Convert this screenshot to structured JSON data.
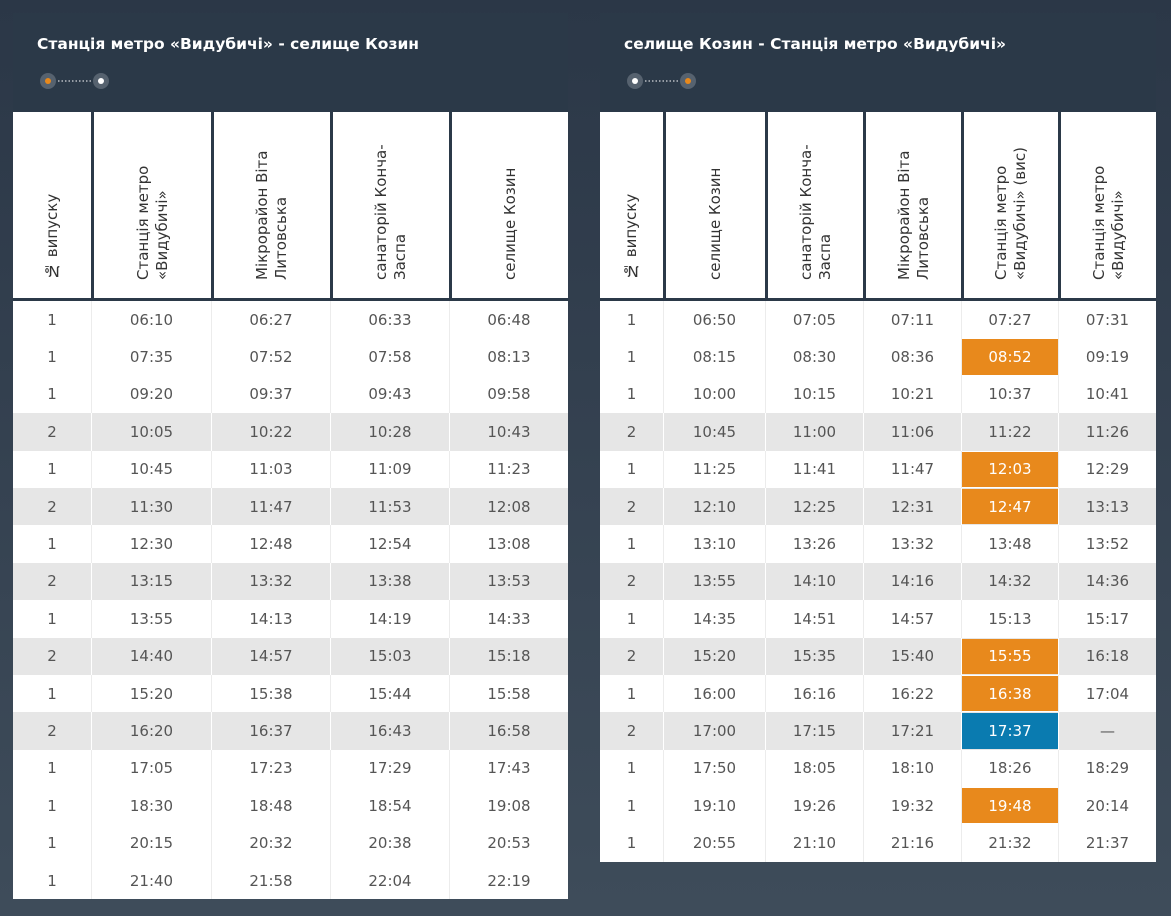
{
  "tables": [
    {
      "title": "Станція метро «Видубичі» - селище Козин",
      "columns": [
        "№ випуску",
        "Станція метро «Видубичі»",
        "Мікрорайон Віта Литовська",
        "санаторій Конча-Заспа",
        "селище Козин"
      ],
      "rows": [
        {
          "cells": [
            "1",
            "06:10",
            "06:27",
            "06:33",
            "06:48"
          ],
          "shaded": false
        },
        {
          "cells": [
            "1",
            "07:35",
            "07:52",
            "07:58",
            "08:13"
          ],
          "shaded": false
        },
        {
          "cells": [
            "1",
            "09:20",
            "09:37",
            "09:43",
            "09:58"
          ],
          "shaded": false
        },
        {
          "cells": [
            "2",
            "10:05",
            "10:22",
            "10:28",
            "10:43"
          ],
          "shaded": true
        },
        {
          "cells": [
            "1",
            "10:45",
            "11:03",
            "11:09",
            "11:23"
          ],
          "shaded": false
        },
        {
          "cells": [
            "2",
            "11:30",
            "11:47",
            "11:53",
            "12:08"
          ],
          "shaded": true
        },
        {
          "cells": [
            "1",
            "12:30",
            "12:48",
            "12:54",
            "13:08"
          ],
          "shaded": false
        },
        {
          "cells": [
            "2",
            "13:15",
            "13:32",
            "13:38",
            "13:53"
          ],
          "shaded": true
        },
        {
          "cells": [
            "1",
            "13:55",
            "14:13",
            "14:19",
            "14:33"
          ],
          "shaded": false
        },
        {
          "cells": [
            "2",
            "14:40",
            "14:57",
            "15:03",
            "15:18"
          ],
          "shaded": true
        },
        {
          "cells": [
            "1",
            "15:20",
            "15:38",
            "15:44",
            "15:58"
          ],
          "shaded": false
        },
        {
          "cells": [
            "2",
            "16:20",
            "16:37",
            "16:43",
            "16:58"
          ],
          "shaded": true
        },
        {
          "cells": [
            "1",
            "17:05",
            "17:23",
            "17:29",
            "17:43"
          ],
          "shaded": false
        },
        {
          "cells": [
            "1",
            "18:30",
            "18:48",
            "18:54",
            "19:08"
          ],
          "shaded": false
        },
        {
          "cells": [
            "1",
            "20:15",
            "20:32",
            "20:38",
            "20:53"
          ],
          "shaded": false
        },
        {
          "cells": [
            "1",
            "21:40",
            "21:58",
            "22:04",
            "22:19"
          ],
          "shaded": false
        }
      ]
    },
    {
      "title": "селище Козин - Станція метро «Видубичі»",
      "columns": [
        "№ випуску",
        "селище Козин",
        "санаторій Конча-Заспа",
        "Мікрорайон Віта Литовська",
        "Станція метро «Видубичі» (вис)",
        "Станція метро «Видубичі»"
      ],
      "rows": [
        {
          "cells": [
            "1",
            "06:50",
            "07:05",
            "07:11",
            "07:27",
            "07:31"
          ],
          "shaded": false
        },
        {
          "cells": [
            "1",
            "08:15",
            "08:30",
            "08:36",
            {
              "text": "08:52",
              "color": "#e8891c"
            },
            "09:19"
          ],
          "shaded": false
        },
        {
          "cells": [
            "1",
            "10:00",
            "10:15",
            "10:21",
            "10:37",
            "10:41"
          ],
          "shaded": false
        },
        {
          "cells": [
            "2",
            "10:45",
            "11:00",
            "11:06",
            "11:22",
            "11:26"
          ],
          "shaded": true
        },
        {
          "cells": [
            "1",
            "11:25",
            "11:41",
            "11:47",
            {
              "text": "12:03",
              "color": "#e8891c"
            },
            "12:29"
          ],
          "shaded": false
        },
        {
          "cells": [
            "2",
            "12:10",
            "12:25",
            "12:31",
            {
              "text": "12:47",
              "color": "#e8891c"
            },
            "13:13"
          ],
          "shaded": true
        },
        {
          "cells": [
            "1",
            "13:10",
            "13:26",
            "13:32",
            "13:48",
            "13:52"
          ],
          "shaded": false
        },
        {
          "cells": [
            "2",
            "13:55",
            "14:10",
            "14:16",
            "14:32",
            "14:36"
          ],
          "shaded": true
        },
        {
          "cells": [
            "1",
            "14:35",
            "14:51",
            "14:57",
            "15:13",
            "15:17"
          ],
          "shaded": false
        },
        {
          "cells": [
            "2",
            "15:20",
            "15:35",
            "15:40",
            {
              "text": "15:55",
              "color": "#e8891c"
            },
            "16:18"
          ],
          "shaded": true
        },
        {
          "cells": [
            "1",
            "16:00",
            "16:16",
            "16:22",
            {
              "text": "16:38",
              "color": "#e8891c"
            },
            "17:04"
          ],
          "shaded": false
        },
        {
          "cells": [
            "2",
            "17:00",
            "17:15",
            "17:21",
            {
              "text": "17:37",
              "color": "#0a7bb0"
            },
            "—"
          ],
          "shaded": true
        },
        {
          "cells": [
            "1",
            "17:50",
            "18:05",
            "18:10",
            "18:26",
            "18:29"
          ],
          "shaded": false
        },
        {
          "cells": [
            "1",
            "19:10",
            "19:26",
            "19:32",
            {
              "text": "19:48",
              "color": "#e8891c"
            },
            "20:14"
          ],
          "shaded": false
        },
        {
          "cells": [
            "1",
            "20:55",
            "21:10",
            "21:16",
            "21:32",
            "21:37"
          ],
          "shaded": false
        }
      ]
    }
  ]
}
